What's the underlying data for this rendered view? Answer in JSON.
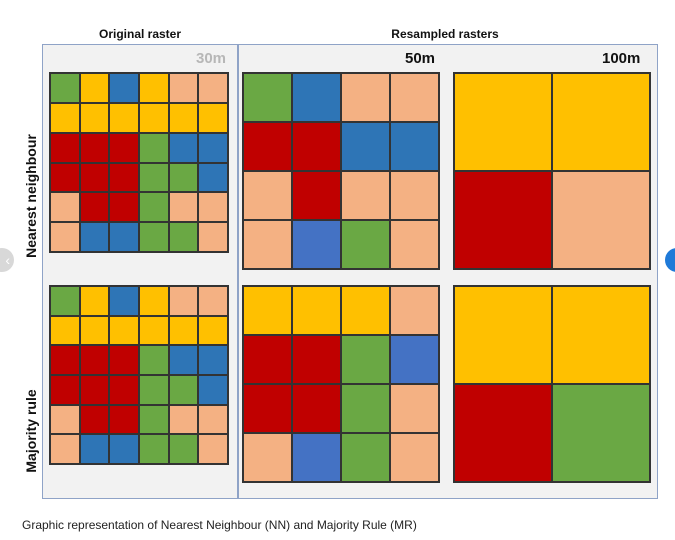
{
  "headers": {
    "original": "Original  raster",
    "resampled": "Resampled rasters"
  },
  "resolutions": {
    "r30": "30m",
    "r50": "50m",
    "r100": "100m"
  },
  "row_labels": {
    "nn": "Nearest neighbour",
    "mr": "Majority rule"
  },
  "caption": "Graphic representation of Nearest Neighbour (NN) and Majority Rule (MR)",
  "colors": {
    "G": "#6aa844",
    "Y": "#ffc000",
    "B": "#2e75b6",
    "R": "#c00000",
    "P": "#f4b183",
    "L": "#4472c4"
  },
  "grids": {
    "orig_nn": {
      "cols": 6,
      "rows": [
        [
          "G",
          "Y",
          "B",
          "Y",
          "P",
          "P"
        ],
        [
          "Y",
          "Y",
          "Y",
          "Y",
          "Y",
          "Y"
        ],
        [
          "R",
          "R",
          "R",
          "G",
          "B",
          "B"
        ],
        [
          "R",
          "R",
          "R",
          "G",
          "G",
          "B"
        ],
        [
          "P",
          "R",
          "R",
          "G",
          "P",
          "P"
        ],
        [
          "P",
          "B",
          "B",
          "G",
          "G",
          "P"
        ]
      ]
    },
    "nn50": {
      "cols": 4,
      "rows": [
        [
          "G",
          "B",
          "P",
          "P"
        ],
        [
          "R",
          "R",
          "B",
          "B"
        ],
        [
          "P",
          "R",
          "P",
          "P"
        ],
        [
          "P",
          "L",
          "G",
          "P"
        ]
      ]
    },
    "nn100": {
      "cols": 2,
      "rows": [
        [
          "Y",
          "Y"
        ],
        [
          "R",
          "P"
        ]
      ]
    },
    "orig_mr": {
      "cols": 6,
      "rows": [
        [
          "G",
          "Y",
          "B",
          "Y",
          "P",
          "P"
        ],
        [
          "Y",
          "Y",
          "Y",
          "Y",
          "Y",
          "Y"
        ],
        [
          "R",
          "R",
          "R",
          "G",
          "B",
          "B"
        ],
        [
          "R",
          "R",
          "R",
          "G",
          "G",
          "B"
        ],
        [
          "P",
          "R",
          "R",
          "G",
          "P",
          "P"
        ],
        [
          "P",
          "B",
          "B",
          "G",
          "G",
          "P"
        ]
      ]
    },
    "mr50": {
      "cols": 4,
      "rows": [
        [
          "Y",
          "Y",
          "Y",
          "P"
        ],
        [
          "R",
          "R",
          "G",
          "L"
        ],
        [
          "R",
          "R",
          "G",
          "P"
        ],
        [
          "P",
          "L",
          "G",
          "P"
        ]
      ]
    },
    "mr100": {
      "cols": 2,
      "rows": [
        [
          "Y",
          "Y"
        ],
        [
          "R",
          "G"
        ]
      ]
    }
  }
}
